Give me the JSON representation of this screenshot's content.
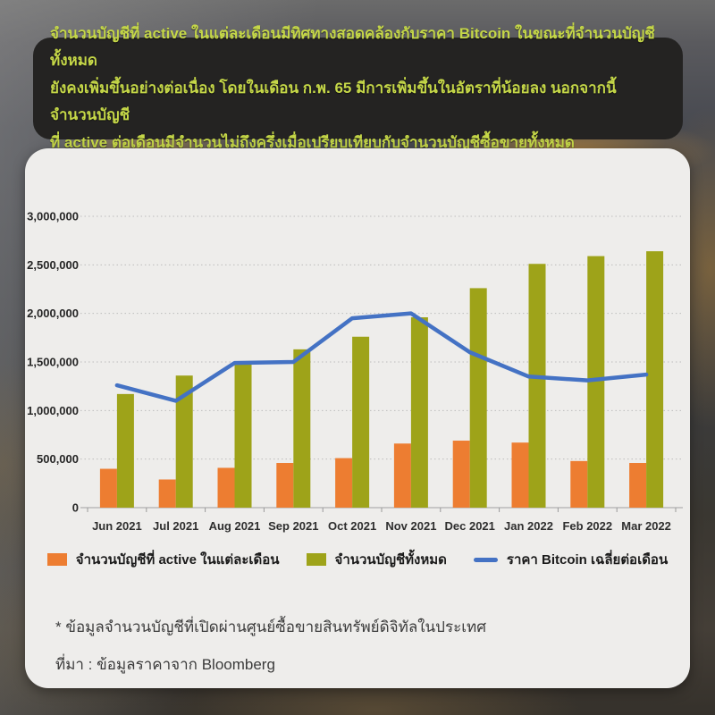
{
  "headline": {
    "lines": [
      "จำนวนบัญชีที่ active ในแต่ละเดือนมีทิศทางสอดคล้องกับราคา Bitcoin ในขณะที่จำนวนบัญชีทั้งหมด",
      "ยังคงเพิ่มขึ้นอย่างต่อเนื่อง โดยในเดือน ก.พ. 65 มีการเพิ่มขึ้นในอัตราที่น้อยลง นอกจากนี้ จำนวนบัญชี",
      "ที่ active ต่อเดือนมีจำนวนไม่ถึงครึ่งเมื่อเปรียบเทียบกับจำนวนบัญชีซื้อขายทั้งหมด"
    ],
    "text_color": "#c5d748",
    "background_color": "#242322"
  },
  "chart_data": {
    "type": "combo",
    "title": "",
    "xlabel": "",
    "ylabel": "",
    "categories": [
      "Jun 2021",
      "Jul 2021",
      "Aug 2021",
      "Sep 2021",
      "Oct 2021",
      "Nov 2021",
      "Dec 2021",
      "Jan 2022",
      "Feb 2022",
      "Mar 2022"
    ],
    "series": [
      {
        "name": "จำนวนบัญชีที่ active ในแต่ละเดือน",
        "type": "bar",
        "color": "#ED7D31",
        "values": [
          400000,
          290000,
          410000,
          460000,
          510000,
          660000,
          690000,
          670000,
          480000,
          460000
        ]
      },
      {
        "name": "จำนวนบัญชีทั้งหมด",
        "type": "bar",
        "color": "#9EA319",
        "values": [
          1170000,
          1360000,
          1490000,
          1630000,
          1760000,
          1960000,
          2260000,
          2510000,
          2590000,
          2640000
        ]
      },
      {
        "name": "ราคา Bitcoin เฉลี่ยต่อเดือน",
        "type": "line",
        "color": "#4472C4",
        "values": [
          1260000,
          1100000,
          1490000,
          1500000,
          1950000,
          2000000,
          1600000,
          1350000,
          1310000,
          1370000
        ]
      }
    ],
    "ylim": [
      0,
      3000000
    ],
    "ytick_step": 500000,
    "ytick_labels": [
      "0",
      "500,000",
      "1,000,000",
      "1,500,000",
      "2,000,000",
      "2,500,000",
      "3,000,000"
    ],
    "grid": "dotted horizontal",
    "legend_position": "bottom"
  },
  "footnotes": {
    "note": "* ข้อมูลจำนวนบัญชีที่เปิดผ่านศูนย์ซื้อขายสินทรัพย์ดิจิทัลในประเทศ",
    "source": "ที่มา : ข้อมูลราคาจาก Bloomberg"
  }
}
